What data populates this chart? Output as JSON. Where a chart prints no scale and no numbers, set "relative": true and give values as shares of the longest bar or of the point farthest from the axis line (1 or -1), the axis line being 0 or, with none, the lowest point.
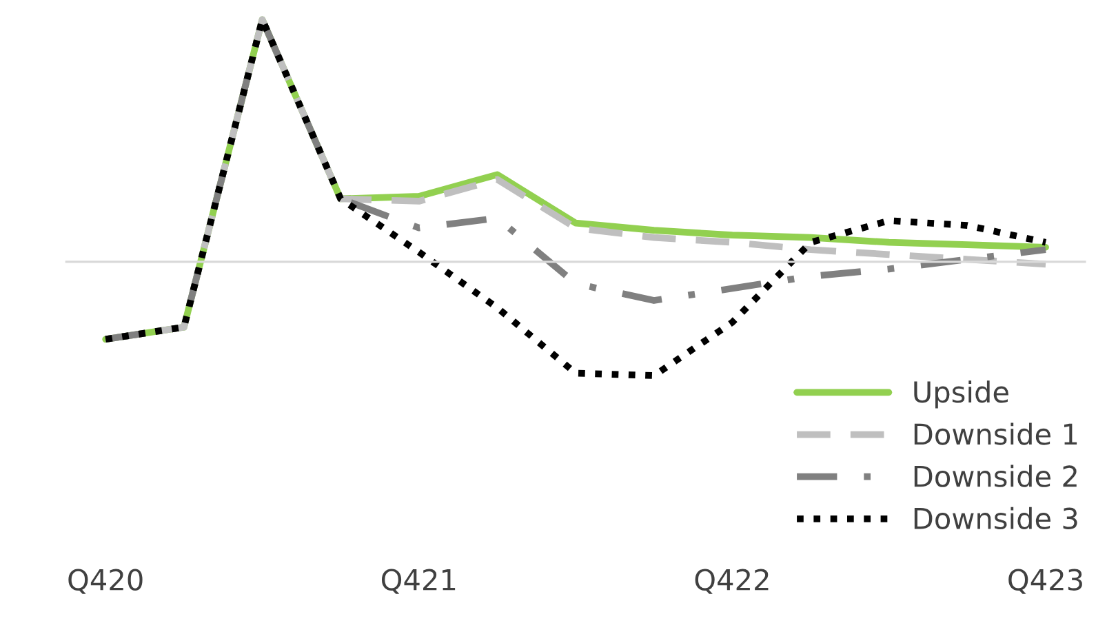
{
  "chart_data": {
    "type": "line",
    "relative": true,
    "categories": [
      "Q420",
      null,
      null,
      null,
      "Q421",
      null,
      null,
      null,
      "Q422",
      null,
      null,
      null,
      "Q423"
    ],
    "series": [
      {
        "name": "Upside",
        "color": "#92d050",
        "line_style": "solid",
        "values": [
          -0.32,
          -0.27,
          1,
          0.26,
          0.27,
          0.36,
          0.16,
          0.13,
          0.11,
          0.1,
          0.08,
          0.07,
          0.06
        ]
      },
      {
        "name": "Downside 1",
        "color": "#bfbfbf",
        "line_style": "dashed",
        "values": [
          -0.32,
          -0.27,
          1,
          0.26,
          0.25,
          0.34,
          0.14,
          0.1,
          0.08,
          0.05,
          0.03,
          0.01,
          -0.01
        ]
      },
      {
        "name": "Downside 2",
        "color": "#808080",
        "line_style": "dashdot",
        "values": [
          -0.32,
          -0.27,
          1,
          0.26,
          0.14,
          0.18,
          -0.09,
          -0.16,
          -0.11,
          -0.06,
          -0.03,
          0.01,
          0.05
        ]
      },
      {
        "name": "Downside 3",
        "color": "#000000",
        "line_style": "dotted",
        "values": [
          -0.32,
          -0.27,
          1,
          0.26,
          0.04,
          -0.19,
          -0.46,
          -0.47,
          -0.25,
          0.08,
          0.17,
          0.15,
          0.08
        ]
      }
    ],
    "legend": "bottom right",
    "grid": false,
    "marker": "none"
  }
}
